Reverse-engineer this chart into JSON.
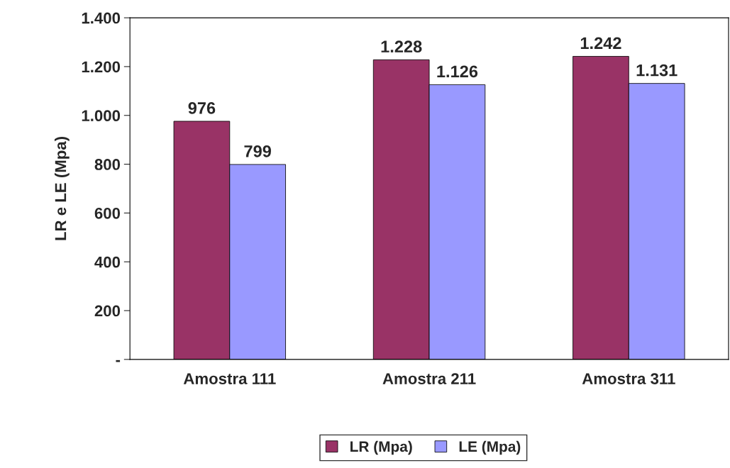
{
  "chart_data": {
    "type": "bar",
    "ylabel": "LR e LE (Mpa)",
    "categories": [
      "Amostra 111",
      "Amostra 211",
      "Amostra 311"
    ],
    "series": [
      {
        "name": "LR (Mpa)",
        "color": "#993366",
        "values": [
          976,
          1228,
          1242
        ],
        "value_labels": [
          "976",
          "1.228",
          "1.242"
        ]
      },
      {
        "name": "LE (Mpa)",
        "color": "#9999ff",
        "values": [
          799,
          1126,
          1131
        ],
        "value_labels": [
          "799",
          "1.126",
          "1.131"
        ]
      }
    ],
    "ylim": [
      0,
      1400
    ],
    "yticks": [
      {
        "value": 0,
        "label": "-"
      },
      200,
      400,
      600,
      800,
      {
        "value": 1000,
        "label": "1.000"
      },
      {
        "value": 1200,
        "label": "1.200"
      },
      {
        "value": 1400,
        "label": "1.400"
      }
    ],
    "grid": false,
    "legend": "bottom"
  }
}
